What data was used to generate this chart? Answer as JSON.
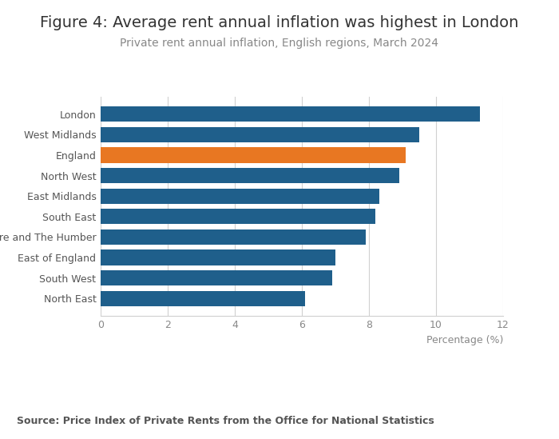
{
  "title": "Figure 4: Average rent annual inflation was highest in London",
  "subtitle": "Private rent annual inflation, English regions, March 2024",
  "source": "Source: Price Index of Private Rents from the Office for National Statistics",
  "categories": [
    "North East",
    "South West",
    "East of England",
    "Yorkshire and The Humber",
    "South East",
    "East Midlands",
    "North West",
    "England",
    "West Midlands",
    "London"
  ],
  "values": [
    6.1,
    6.9,
    7.0,
    7.9,
    8.2,
    8.3,
    8.9,
    9.1,
    9.5,
    11.3
  ],
  "bar_colors": [
    "#1f5f8b",
    "#1f5f8b",
    "#1f5f8b",
    "#1f5f8b",
    "#1f5f8b",
    "#1f5f8b",
    "#1f5f8b",
    "#e87722",
    "#1f5f8b",
    "#1f5f8b"
  ],
  "xlabel": "Percentage (%)",
  "xlim": [
    0,
    12
  ],
  "xticks": [
    0,
    2,
    4,
    6,
    8,
    10,
    12
  ],
  "background_color": "#ffffff",
  "title_fontsize": 14,
  "subtitle_fontsize": 10,
  "source_fontsize": 9,
  "bar_height": 0.75,
  "grid_color": "#d0d0d0",
  "tick_label_color": "#888888",
  "bar_label_color": "#555555"
}
